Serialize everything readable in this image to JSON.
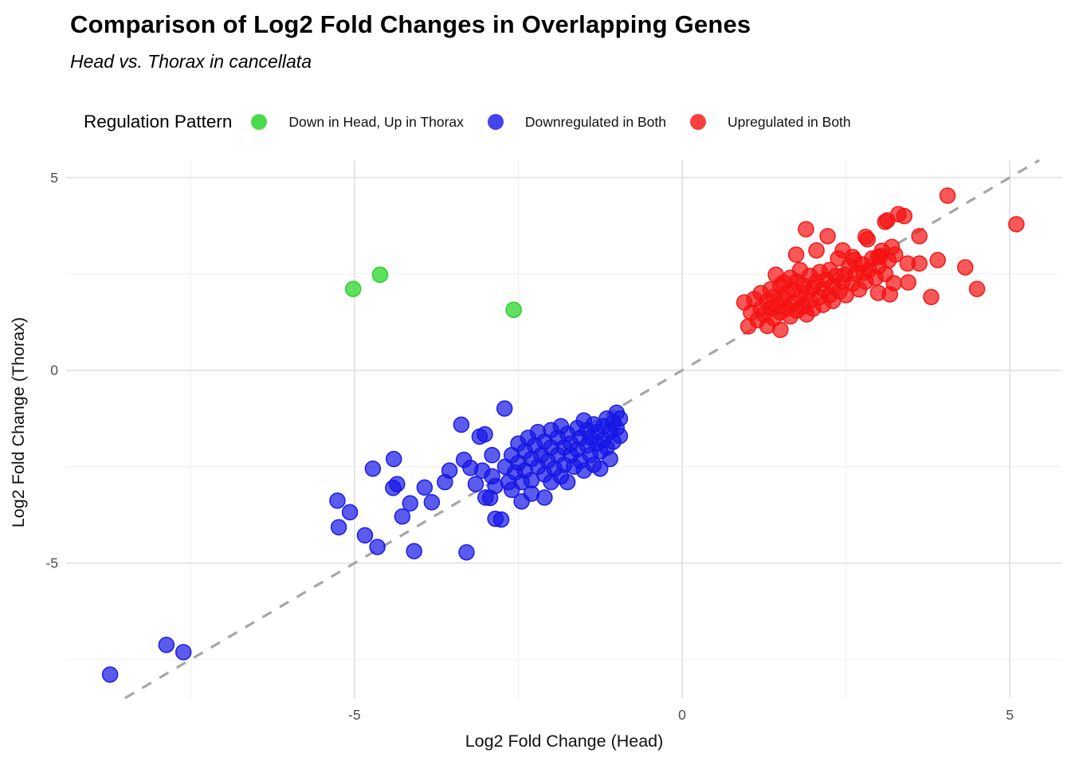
{
  "title": "Comparison of Log2 Fold Changes in Overlapping Genes",
  "subtitle": "Head vs. Thorax in cancellata",
  "legend": {
    "title": "Regulation Pattern",
    "items": [
      {
        "label": "Down in Head, Up in Thorax",
        "color": "#1ed11e"
      },
      {
        "label": "Downregulated in Both",
        "color": "#1515e6"
      },
      {
        "label": "Upregulated in Both",
        "color": "#f51111"
      }
    ]
  },
  "chart_data": {
    "type": "scatter",
    "title": "Comparison of Log2 Fold Changes in Overlapping Genes",
    "subtitle": "Head vs. Thorax in cancellata",
    "xlabel": "Log2 Fold Change (Head)",
    "ylabel": "Log2 Fold Change (Thorax)",
    "xlim": [
      -9.4,
      5.8
    ],
    "ylim": [
      -8.5,
      5.45
    ],
    "x_major_ticks": [
      -5,
      0,
      5
    ],
    "x_minor_ticks": [
      -7.5,
      -2.5,
      2.5
    ],
    "y_major_ticks": [
      5,
      0,
      -5
    ],
    "y_minor_ticks": [
      2.5,
      -2.5,
      -7.5
    ],
    "grid": true,
    "legend_position": "top",
    "identity_line": {
      "style": "dashed",
      "color": "#a6a6a6",
      "from": [
        -8.5,
        -8.5
      ],
      "to": [
        5.45,
        5.45
      ]
    },
    "series": [
      {
        "name": "Down in Head, Up in Thorax",
        "color": "#1ed11e",
        "points": [
          [
            -5.02,
            2.11
          ],
          [
            -4.61,
            2.48
          ],
          [
            -2.57,
            1.57
          ]
        ]
      },
      {
        "name": "Downregulated in Both",
        "color": "#1515e6",
        "points": [
          [
            -8.73,
            -7.89
          ],
          [
            -7.87,
            -7.12
          ],
          [
            -7.61,
            -7.31
          ],
          [
            -5.26,
            -3.38
          ],
          [
            -5.07,
            -3.68
          ],
          [
            -5.24,
            -4.07
          ],
          [
            -4.84,
            -4.28
          ],
          [
            -4.65,
            -4.58
          ],
          [
            -4.72,
            -2.55
          ],
          [
            -4.4,
            -2.3
          ],
          [
            -4.35,
            -2.95
          ],
          [
            -4.41,
            -3.05
          ],
          [
            -4.15,
            -3.45
          ],
          [
            -4.27,
            -3.79
          ],
          [
            -4.09,
            -4.69
          ],
          [
            -3.93,
            -3.04
          ],
          [
            -3.82,
            -3.42
          ],
          [
            -3.55,
            -2.6
          ],
          [
            -3.62,
            -2.9
          ],
          [
            -3.33,
            -2.32
          ],
          [
            -3.23,
            -2.53
          ],
          [
            -3.29,
            -4.72
          ],
          [
            -3.37,
            -1.41
          ],
          [
            -2.85,
            -3.85
          ],
          [
            -2.76,
            -3.87
          ],
          [
            -2.93,
            -3.31
          ],
          [
            -3.01,
            -1.66
          ],
          [
            -3.09,
            -1.72
          ],
          [
            -2.71,
            -0.99
          ],
          [
            -3.15,
            -2.95
          ],
          [
            -3.05,
            -2.6
          ],
          [
            -3.0,
            -3.3
          ],
          [
            -2.9,
            -2.75
          ],
          [
            -2.9,
            -2.2
          ],
          [
            -2.85,
            -3.0
          ],
          [
            -2.7,
            -2.5
          ],
          [
            -2.65,
            -2.9
          ],
          [
            -2.6,
            -2.2
          ],
          [
            -2.6,
            -3.1
          ],
          [
            -2.55,
            -2.65
          ],
          [
            -2.5,
            -1.9
          ],
          [
            -2.5,
            -2.4
          ],
          [
            -2.45,
            -2.9
          ],
          [
            -2.45,
            -3.4
          ],
          [
            -2.4,
            -2.1
          ],
          [
            -2.4,
            -2.6
          ],
          [
            -2.35,
            -1.75
          ],
          [
            -2.3,
            -2.3
          ],
          [
            -2.3,
            -2.85
          ],
          [
            -2.3,
            -3.2
          ],
          [
            -2.25,
            -1.95
          ],
          [
            -2.2,
            -2.5
          ],
          [
            -2.2,
            -1.6
          ],
          [
            -2.15,
            -2.2
          ],
          [
            -2.1,
            -1.85
          ],
          [
            -2.1,
            -2.7
          ],
          [
            -2.1,
            -3.3
          ],
          [
            -2.05,
            -2.35
          ],
          [
            -2.0,
            -1.55
          ],
          [
            -2.0,
            -2.0
          ],
          [
            -2.0,
            -2.9
          ],
          [
            -1.95,
            -2.55
          ],
          [
            -1.9,
            -1.75
          ],
          [
            -1.9,
            -2.2
          ],
          [
            -1.85,
            -2.75
          ],
          [
            -1.85,
            -1.45
          ],
          [
            -1.8,
            -2.0
          ],
          [
            -1.8,
            -2.45
          ],
          [
            -1.75,
            -1.65
          ],
          [
            -1.75,
            -2.9
          ],
          [
            -1.7,
            -2.2
          ],
          [
            -1.7,
            -1.9
          ],
          [
            -1.65,
            -2.5
          ],
          [
            -1.6,
            -1.5
          ],
          [
            -1.6,
            -2.05
          ],
          [
            -1.55,
            -1.75
          ],
          [
            -1.55,
            -2.35
          ],
          [
            -1.5,
            -1.3
          ],
          [
            -1.5,
            -2.6
          ],
          [
            -1.45,
            -1.95
          ],
          [
            -1.45,
            -1.55
          ],
          [
            -1.4,
            -2.2
          ],
          [
            -1.4,
            -1.75
          ],
          [
            -1.35,
            -1.4
          ],
          [
            -1.35,
            -2.45
          ],
          [
            -1.3,
            -1.9
          ],
          [
            -1.3,
            -1.6
          ],
          [
            -1.25,
            -2.1
          ],
          [
            -1.2,
            -1.45
          ],
          [
            -1.2,
            -1.8
          ],
          [
            -1.15,
            -1.25
          ],
          [
            -1.15,
            -2.0
          ],
          [
            -1.1,
            -1.6
          ],
          [
            -1.05,
            -1.35
          ],
          [
            -1.05,
            -1.85
          ],
          [
            -1.0,
            -1.1
          ],
          [
            -1.0,
            -1.5
          ],
          [
            -0.95,
            -1.7
          ],
          [
            -0.95,
            -1.25
          ],
          [
            -1.1,
            -2.3
          ],
          [
            -1.25,
            -2.55
          ]
        ]
      },
      {
        "name": "Upregulated in Both",
        "color": "#f51111",
        "points": [
          [
            0.95,
            1.76
          ],
          [
            1.01,
            1.14
          ],
          [
            1.05,
            1.5
          ],
          [
            1.1,
            1.85
          ],
          [
            1.15,
            1.3
          ],
          [
            1.2,
            1.6
          ],
          [
            1.2,
            2.0
          ],
          [
            1.25,
            1.45
          ],
          [
            1.3,
            1.8
          ],
          [
            1.3,
            1.15
          ],
          [
            1.35,
            2.1
          ],
          [
            1.35,
            1.6
          ],
          [
            1.4,
            1.35
          ],
          [
            1.4,
            1.9
          ],
          [
            1.43,
            2.48
          ],
          [
            1.45,
            1.7
          ],
          [
            1.5,
            1.05
          ],
          [
            1.5,
            1.5
          ],
          [
            1.5,
            2.2
          ],
          [
            1.55,
            2.28
          ],
          [
            1.55,
            1.85
          ],
          [
            1.6,
            1.6
          ],
          [
            1.6,
            2.0
          ],
          [
            1.65,
            1.4
          ],
          [
            1.65,
            2.4
          ],
          [
            1.7,
            1.75
          ],
          [
            1.7,
            2.1
          ],
          [
            1.74,
            3.0
          ],
          [
            1.75,
            1.55
          ],
          [
            1.75,
            2.3
          ],
          [
            1.8,
            1.9
          ],
          [
            1.8,
            2.6
          ],
          [
            1.85,
            1.65
          ],
          [
            1.85,
            2.2
          ],
          [
            1.89,
            3.66
          ],
          [
            1.9,
            1.45
          ],
          [
            1.9,
            2.0
          ],
          [
            1.95,
            2.45
          ],
          [
            1.95,
            1.8
          ],
          [
            2.0,
            2.15
          ],
          [
            2.0,
            1.6
          ],
          [
            2.05,
            3.11
          ],
          [
            2.05,
            2.3
          ],
          [
            2.1,
            1.9
          ],
          [
            2.1,
            2.55
          ],
          [
            2.15,
            2.1
          ],
          [
            2.15,
            1.7
          ],
          [
            2.2,
            2.35
          ],
          [
            2.22,
            3.48
          ],
          [
            2.25,
            1.95
          ],
          [
            2.25,
            2.6
          ],
          [
            2.3,
            2.2
          ],
          [
            2.3,
            1.8
          ],
          [
            2.35,
            2.45
          ],
          [
            2.38,
            2.9
          ],
          [
            2.4,
            2.05
          ],
          [
            2.45,
            2.3
          ],
          [
            2.45,
            3.11
          ],
          [
            2.5,
            1.95
          ],
          [
            2.48,
            2.48
          ],
          [
            2.55,
            2.7
          ],
          [
            2.6,
            2.94
          ],
          [
            2.6,
            2.25
          ],
          [
            2.63,
            2.86
          ],
          [
            2.65,
            2.5
          ],
          [
            2.7,
            2.1
          ],
          [
            2.75,
            2.75
          ],
          [
            2.77,
            2.53
          ],
          [
            2.8,
            2.3
          ],
          [
            2.8,
            3.46
          ],
          [
            2.83,
            3.4
          ],
          [
            2.85,
            2.6
          ],
          [
            2.9,
            2.9
          ],
          [
            2.95,
            2.4
          ],
          [
            2.99,
            2.94
          ],
          [
            3.0,
            2.7
          ],
          [
            3.02,
            2.96
          ],
          [
            3.05,
            3.1
          ],
          [
            3.1,
            2.5
          ],
          [
            3.13,
            3.89
          ],
          [
            3.15,
            2.85
          ],
          [
            3.2,
            3.2
          ],
          [
            3.25,
            3.0
          ],
          [
            3.3,
            4.05
          ],
          [
            3.1,
            3.85
          ],
          [
            3.39,
            4.0
          ],
          [
            3.62,
            3.48
          ],
          [
            3.62,
            2.77
          ],
          [
            3.44,
            2.77
          ],
          [
            3.23,
            2.26
          ],
          [
            3.45,
            2.28
          ],
          [
            2.99,
            2.01
          ],
          [
            3.17,
            1.97
          ],
          [
            3.8,
            1.9
          ],
          [
            3.9,
            2.86
          ],
          [
            4.32,
            2.67
          ],
          [
            4.5,
            2.11
          ],
          [
            4.05,
            4.53
          ],
          [
            5.1,
            3.79
          ]
        ]
      }
    ],
    "style": {
      "point_radius": 9.5,
      "point_fill_opacity": 0.7,
      "grid_major_color": "#e2e2e2",
      "grid_minor_color": "#efefef",
      "tick_label_color": "#4d4d4d",
      "axis_title_color": "#111111"
    }
  }
}
